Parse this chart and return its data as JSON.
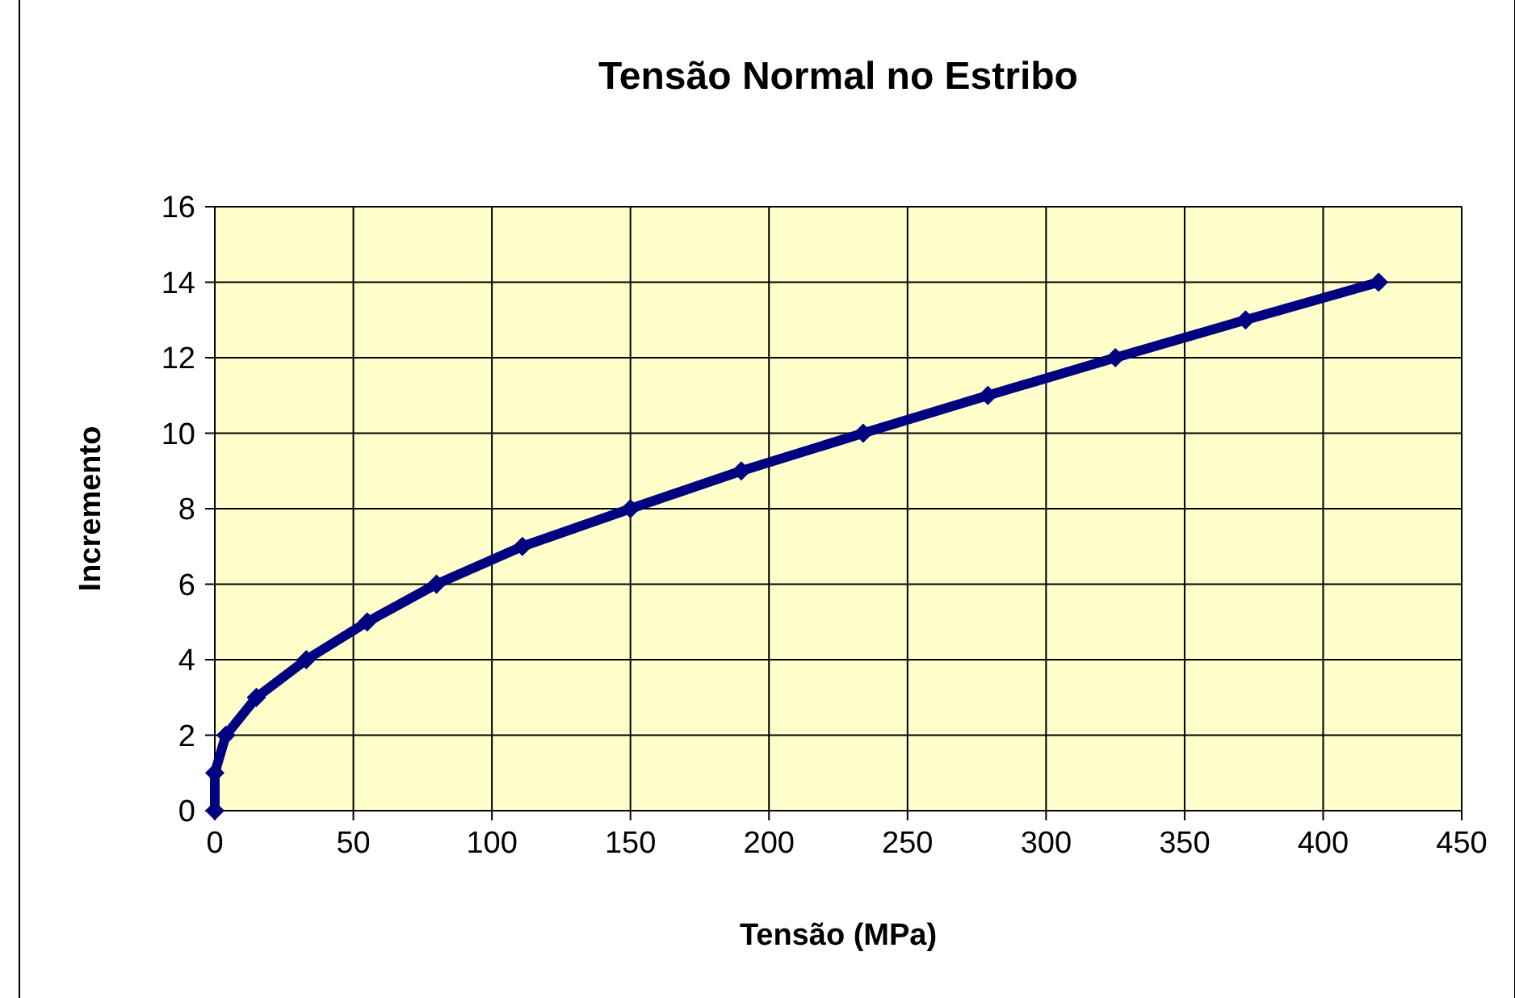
{
  "chart_data": {
    "type": "line",
    "title": "Tensão Normal no Estribo",
    "xlabel": "Tensão  (MPa)",
    "ylabel": "Incremento",
    "x": [
      0,
      0,
      4,
      15,
      33,
      55,
      80,
      111,
      150,
      190,
      234,
      279,
      325,
      372,
      420
    ],
    "series": [
      {
        "color": "#000080",
        "values": [
          0,
          1,
          2,
          3,
          4,
          5,
          6,
          7,
          8,
          9,
          10,
          11,
          12,
          13,
          14
        ]
      }
    ],
    "xlim": [
      0,
      450
    ],
    "xticks": [
      0,
      50,
      100,
      150,
      200,
      250,
      300,
      350,
      400,
      450
    ],
    "ylim": [
      0,
      16
    ],
    "yticks": [
      0,
      2,
      4,
      6,
      8,
      10,
      12,
      14,
      16
    ],
    "grid": true,
    "marker": "diamond",
    "line_style": "solid"
  }
}
